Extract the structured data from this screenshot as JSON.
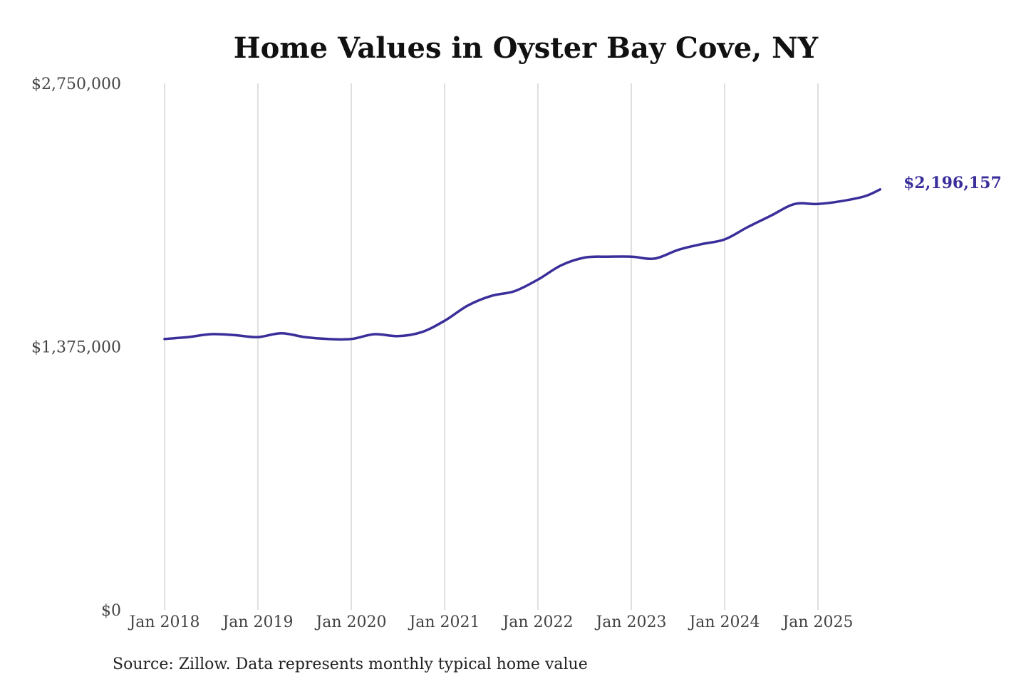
{
  "chart_data": {
    "type": "line",
    "title": "Home Values in Oyster Bay Cove, NY",
    "xlabel": "",
    "ylabel": "",
    "ylim": [
      0,
      2750000
    ],
    "y_ticks": [
      {
        "value": 0,
        "label": "$0"
      },
      {
        "value": 1375000,
        "label": "$1,375,000"
      },
      {
        "value": 2750000,
        "label": "$2,750,000"
      }
    ],
    "x_ticks": [
      {
        "value": "2018-01",
        "label": "Jan 2018"
      },
      {
        "value": "2019-01",
        "label": "Jan 2019"
      },
      {
        "value": "2020-01",
        "label": "Jan 2020"
      },
      {
        "value": "2021-01",
        "label": "Jan 2021"
      },
      {
        "value": "2022-01",
        "label": "Jan 2022"
      },
      {
        "value": "2023-01",
        "label": "Jan 2023"
      },
      {
        "value": "2024-01",
        "label": "Jan 2024"
      },
      {
        "value": "2025-01",
        "label": "Jan 2025"
      }
    ],
    "grid": "vertical",
    "line_color": "#3a2f9a",
    "series": [
      {
        "name": "",
        "points": [
          {
            "x": "2018-01",
            "y": 1415000
          },
          {
            "x": "2018-04",
            "y": 1425000
          },
          {
            "x": "2018-07",
            "y": 1440000
          },
          {
            "x": "2018-10",
            "y": 1435000
          },
          {
            "x": "2019-01",
            "y": 1425000
          },
          {
            "x": "2019-04",
            "y": 1445000
          },
          {
            "x": "2019-07",
            "y": 1425000
          },
          {
            "x": "2019-10",
            "y": 1415000
          },
          {
            "x": "2020-01",
            "y": 1415000
          },
          {
            "x": "2020-04",
            "y": 1440000
          },
          {
            "x": "2020-07",
            "y": 1430000
          },
          {
            "x": "2020-10",
            "y": 1450000
          },
          {
            "x": "2021-01",
            "y": 1510000
          },
          {
            "x": "2021-04",
            "y": 1590000
          },
          {
            "x": "2021-07",
            "y": 1640000
          },
          {
            "x": "2021-10",
            "y": 1665000
          },
          {
            "x": "2022-01",
            "y": 1725000
          },
          {
            "x": "2022-04",
            "y": 1800000
          },
          {
            "x": "2022-07",
            "y": 1840000
          },
          {
            "x": "2022-10",
            "y": 1845000
          },
          {
            "x": "2023-01",
            "y": 1845000
          },
          {
            "x": "2023-04",
            "y": 1835000
          },
          {
            "x": "2023-07",
            "y": 1880000
          },
          {
            "x": "2023-10",
            "y": 1910000
          },
          {
            "x": "2024-01",
            "y": 1935000
          },
          {
            "x": "2024-04",
            "y": 2000000
          },
          {
            "x": "2024-07",
            "y": 2060000
          },
          {
            "x": "2024-10",
            "y": 2120000
          },
          {
            "x": "2025-01",
            "y": 2120000
          },
          {
            "x": "2025-04",
            "y": 2135000
          },
          {
            "x": "2025-07",
            "y": 2160000
          },
          {
            "x": "2025-09",
            "y": 2196157
          }
        ],
        "end_label": "$2,196,157"
      }
    ]
  },
  "source_note": "Source: Zillow. Data represents monthly typical home value"
}
